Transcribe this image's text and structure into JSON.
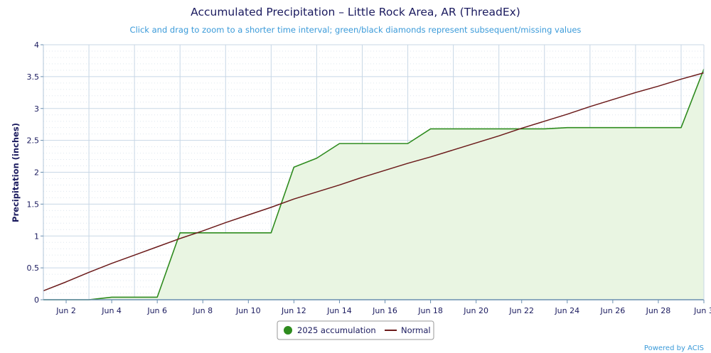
{
  "chart_data": {
    "type": "line",
    "title": "Accumulated Precipitation – Little Rock Area, AR (ThreadEx)",
    "subtitle": "Click and drag to zoom to a shorter time interval; green/black diamonds represent subsequent/missing values",
    "ylabel": "Precipitation (inches)",
    "xlabel": "",
    "ylim": [
      0,
      4
    ],
    "xlim": [
      1,
      30
    ],
    "yticks": [
      0,
      0.5,
      1,
      1.5,
      2,
      2.5,
      3,
      3.5,
      4
    ],
    "ytick_labels": [
      "0",
      "0.5",
      "1",
      "1.5",
      "2",
      "2.5",
      "3",
      "3.5",
      "4"
    ],
    "xticks": [
      2,
      4,
      6,
      8,
      10,
      12,
      14,
      16,
      18,
      20,
      22,
      24,
      26,
      28,
      30
    ],
    "xtick_labels": [
      "Jun 2",
      "Jun 4",
      "Jun 6",
      "Jun 8",
      "Jun 10",
      "Jun 12",
      "Jun 14",
      "Jun 16",
      "Jun 18",
      "Jun 20",
      "Jun 22",
      "Jun 24",
      "Jun 26",
      "Jun 28",
      "Jun 3"
    ],
    "grid": true,
    "legend_position": "bottom-center",
    "series": [
      {
        "name": "2025 accumulation",
        "color": "#2e8b1e",
        "fill": "#e9f5e2",
        "x": [
          1,
          2,
          3,
          4,
          5,
          6,
          7,
          8,
          9,
          10,
          11,
          12,
          13,
          14,
          15,
          16,
          17,
          18,
          19,
          20,
          21,
          22,
          23,
          24,
          25,
          26,
          27,
          28,
          29,
          30
        ],
        "values": [
          0.0,
          0.0,
          0.0,
          0.04,
          0.04,
          0.04,
          1.05,
          1.05,
          1.05,
          1.05,
          1.05,
          2.08,
          2.22,
          2.45,
          2.45,
          2.45,
          2.45,
          2.68,
          2.68,
          2.68,
          2.68,
          2.68,
          2.68,
          2.7,
          2.7,
          2.7,
          2.7,
          2.7,
          2.7,
          3.62
        ]
      },
      {
        "name": "Normal",
        "color": "#6b1a1a",
        "x": [
          1,
          2,
          3,
          4,
          5,
          6,
          7,
          8,
          9,
          10,
          11,
          12,
          13,
          14,
          15,
          16,
          17,
          18,
          19,
          20,
          21,
          22,
          23,
          24,
          25,
          26,
          27,
          28,
          29,
          30
        ],
        "values": [
          0.14,
          0.28,
          0.43,
          0.57,
          0.7,
          0.83,
          0.96,
          1.08,
          1.21,
          1.33,
          1.45,
          1.58,
          1.69,
          1.8,
          1.92,
          2.03,
          2.14,
          2.24,
          2.35,
          2.46,
          2.57,
          2.69,
          2.8,
          2.91,
          3.03,
          3.14,
          3.25,
          3.35,
          3.46,
          3.56
        ]
      }
    ]
  },
  "credit": "Powered by ACIS"
}
